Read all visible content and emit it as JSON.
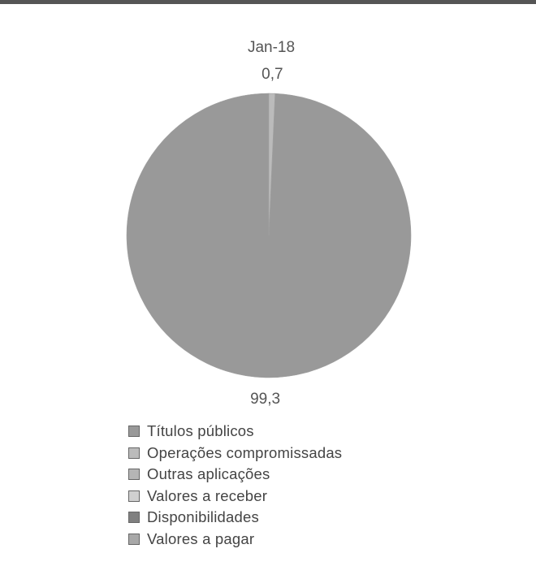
{
  "chart_data": {
    "type": "pie",
    "title": "Jan-18",
    "slices": [
      {
        "name": "Títulos públicos",
        "value": 99.3,
        "label": "99,3",
        "color": "#999999"
      },
      {
        "name": "Operações compromissadas",
        "value": 0.7,
        "label": "0,7",
        "color": "#bbbbbb"
      },
      {
        "name": "Outras aplicações",
        "value": 0,
        "label": "",
        "color": "#b5b5b5"
      },
      {
        "name": "Valores a receber",
        "value": 0,
        "label": "",
        "color": "#d0d0d0"
      },
      {
        "name": "Disponibilidades",
        "value": 0,
        "label": "",
        "color": "#808080"
      },
      {
        "name": "Valores a pagar",
        "value": 0,
        "label": "",
        "color": "#a8a8a8"
      }
    ],
    "legend_placement": "bottom"
  }
}
